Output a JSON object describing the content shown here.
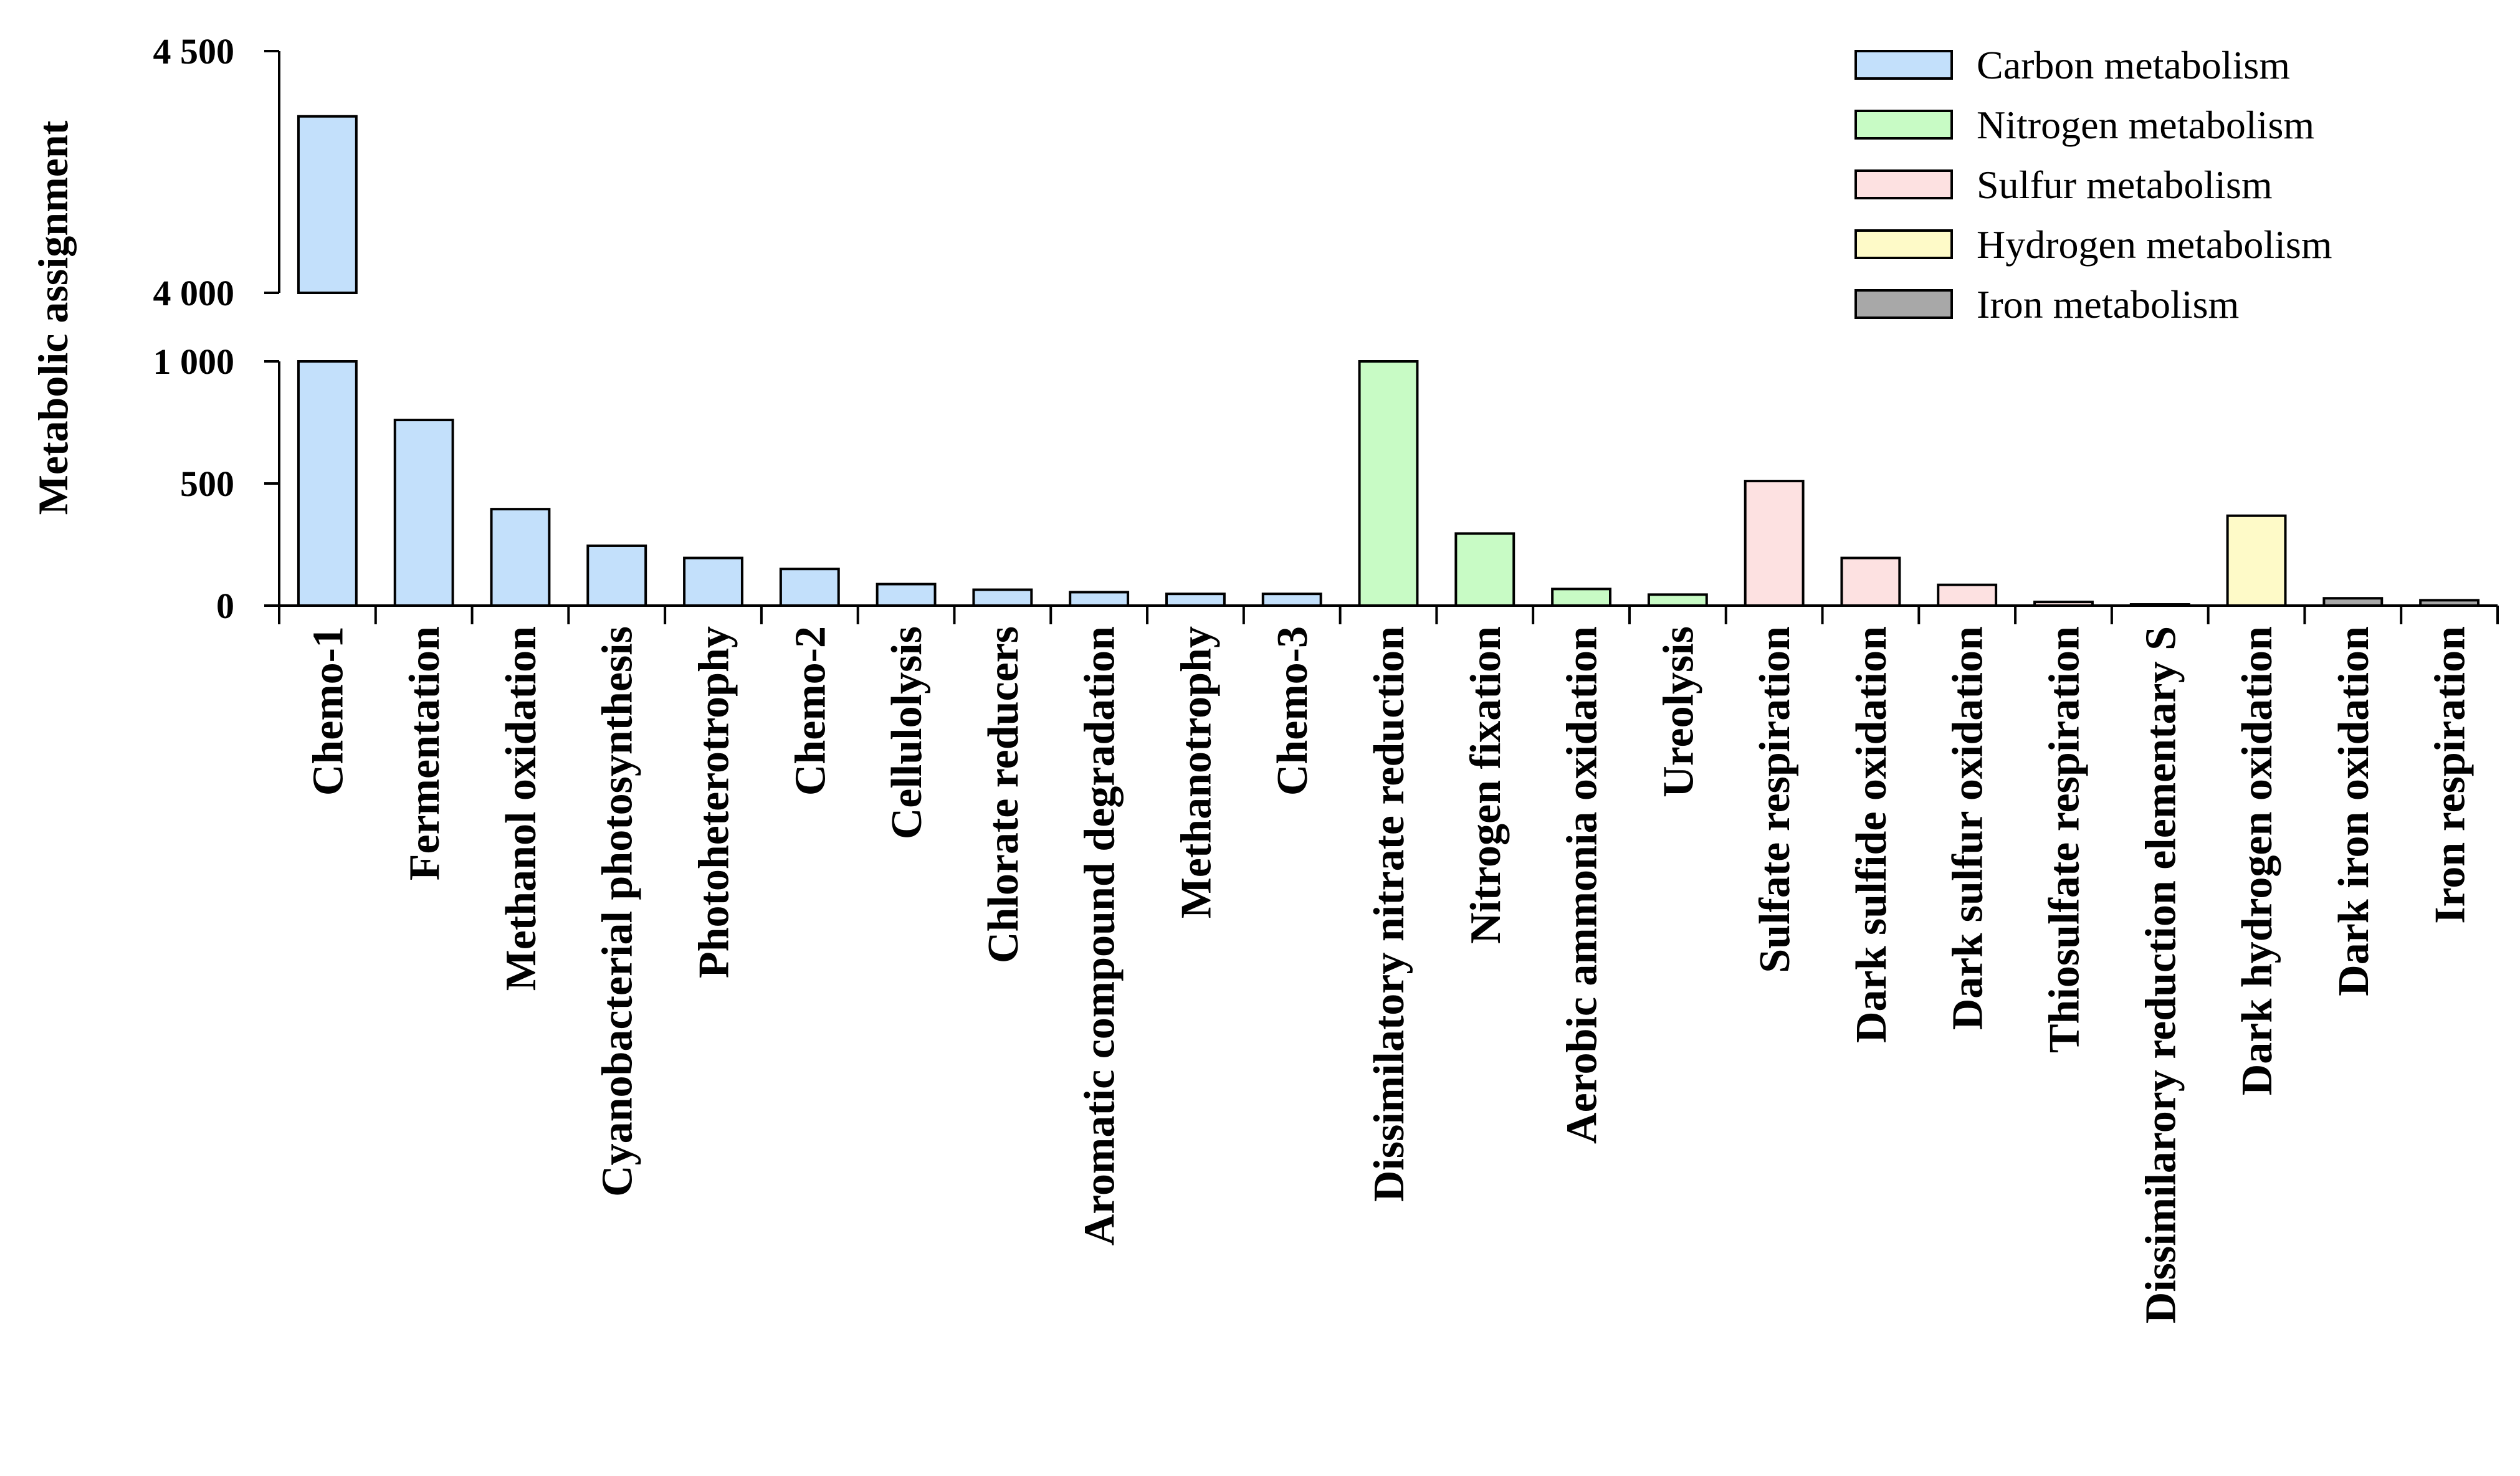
{
  "chart_data": {
    "type": "bar",
    "title": "",
    "xlabel": "",
    "ylabel": "Metabolic assignment",
    "y_axis_break": {
      "lower_segment": [
        0,
        1000
      ],
      "upper_segment": [
        4000,
        4500
      ]
    },
    "lower_ticks": [
      {
        "value": 0,
        "label": "0"
      },
      {
        "value": 500,
        "label": "500"
      },
      {
        "value": 1000,
        "label": "1 000"
      }
    ],
    "upper_ticks": [
      {
        "value": 4000,
        "label": "4 000"
      },
      {
        "value": 4500,
        "label": "4 500"
      }
    ],
    "grid": false,
    "legend_position": "top-right",
    "groups": [
      {
        "name": "Carbon metabolism",
        "color": "#c3e0fb"
      },
      {
        "name": "Nitrogen metabolism",
        "color": "#c8fbc5"
      },
      {
        "name": "Sulfur metabolism",
        "color": "#fde1e1"
      },
      {
        "name": "Hydrogen metabolism",
        "color": "#fefac8"
      },
      {
        "name": "Iron metabolism",
        "color": "#a8a8a8"
      }
    ],
    "bars": [
      {
        "category": "Chemo-1",
        "value": 4365,
        "group": 0
      },
      {
        "category": "Fermentation",
        "value": 760,
        "group": 0
      },
      {
        "category": "Methanol oxidation",
        "value": 395,
        "group": 0
      },
      {
        "category": "Cyanobacterial photosynthesis",
        "value": 245,
        "group": 0
      },
      {
        "category": "Photoheterotrophy",
        "value": 195,
        "group": 0
      },
      {
        "category": "Chemo-2",
        "value": 150,
        "group": 0
      },
      {
        "category": "Cellulolysis",
        "value": 88,
        "group": 0
      },
      {
        "category": "Chlorate reducers",
        "value": 65,
        "group": 0
      },
      {
        "category": "Aromatic compound degradation",
        "value": 55,
        "group": 0
      },
      {
        "category": "Methanotrophy",
        "value": 48,
        "group": 0
      },
      {
        "category": "Chemo-3",
        "value": 48,
        "group": 0
      },
      {
        "category": "Dissimilatory nitrate reduction",
        "value": 1000,
        "group": 1
      },
      {
        "category": "Nitrogen fixation",
        "value": 295,
        "group": 1
      },
      {
        "category": "Aerobic ammonia oxidation",
        "value": 68,
        "group": 1
      },
      {
        "category": "Ureolysis",
        "value": 45,
        "group": 1
      },
      {
        "category": "Sulfate respiration",
        "value": 510,
        "group": 2
      },
      {
        "category": "Dark sulfide oxidation",
        "value": 195,
        "group": 2
      },
      {
        "category": "Dark  sulfur oxidation",
        "value": 85,
        "group": 2
      },
      {
        "category": "Thiosulfate respiration",
        "value": 15,
        "group": 2
      },
      {
        "category": "Dissimilarory reduction elementary S",
        "value": 5,
        "group": 2
      },
      {
        "category": "Dark hydrogen oxidation",
        "value": 368,
        "group": 3
      },
      {
        "category": "Dark iron oxidation",
        "value": 30,
        "group": 4
      },
      {
        "category": "Iron respiration",
        "value": 22,
        "group": 4
      }
    ]
  }
}
